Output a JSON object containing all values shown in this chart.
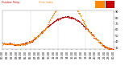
{
  "title": "",
  "background_color": "#ffffff",
  "temp_color": "#cc0000",
  "heat_color": "#ff8800",
  "ylim": [
    28,
    92
  ],
  "xlim": [
    0,
    1440
  ],
  "vline_positions": [
    360,
    720,
    1080
  ],
  "tick_fontsize": 2.5,
  "markersize": 0.7,
  "legend_temp_label": "Outdoor Temp",
  "legend_heat_label": "Heat Index",
  "yticks": [
    30,
    40,
    50,
    60,
    70,
    80,
    90
  ],
  "xtick_step_minutes": 60
}
